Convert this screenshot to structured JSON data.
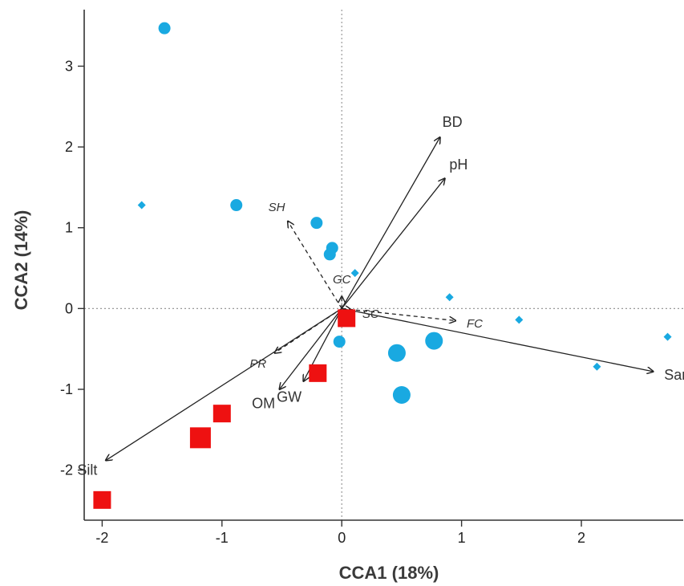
{
  "chart_data": {
    "type": "scatter",
    "title": "",
    "xlabel": "CCA1 (18%)",
    "ylabel": "CCA2 (14%)",
    "xlim": [
      -2.15,
      2.85
    ],
    "ylim": [
      -2.62,
      3.7
    ],
    "xticks": [
      -2,
      -1,
      0,
      1,
      2
    ],
    "yticks": [
      -2,
      -1,
      0,
      1,
      2,
      3
    ],
    "grid": false,
    "reference_lines": {
      "x": 0,
      "y": 0,
      "style": "dotted"
    },
    "colors": {
      "site": "#19a9e1",
      "species": "#ee1111",
      "axes": "#333333",
      "vector": "#222222"
    },
    "sites": [
      {
        "x": -1.48,
        "y": 3.47,
        "size": 2
      },
      {
        "x": -1.67,
        "y": 1.28,
        "size": 1
      },
      {
        "x": -0.88,
        "y": 1.28,
        "size": 2
      },
      {
        "x": -0.21,
        "y": 1.06,
        "size": 2
      },
      {
        "x": -0.08,
        "y": 0.75,
        "size": 2
      },
      {
        "x": -0.1,
        "y": 0.67,
        "size": 2
      },
      {
        "x": 0.11,
        "y": 0.44,
        "size": 1
      },
      {
        "x": 0.9,
        "y": 0.14,
        "size": 1
      },
      {
        "x": 1.48,
        "y": -0.14,
        "size": 1
      },
      {
        "x": 2.72,
        "y": -0.35,
        "size": 1
      },
      {
        "x": -0.02,
        "y": -0.41,
        "size": 2
      },
      {
        "x": 0.46,
        "y": -0.55,
        "size": 3
      },
      {
        "x": 0.77,
        "y": -0.4,
        "size": 3
      },
      {
        "x": 0.5,
        "y": -1.07,
        "size": 3
      },
      {
        "x": 2.13,
        "y": -0.72,
        "size": 1
      }
    ],
    "species": [
      {
        "x": 0.04,
        "y": -0.12,
        "size": 2
      },
      {
        "x": -0.2,
        "y": -0.8,
        "size": 2
      },
      {
        "x": -1.0,
        "y": -1.3,
        "size": 2
      },
      {
        "x": -1.18,
        "y": -1.6,
        "size": 3
      },
      {
        "x": -2.0,
        "y": -2.37,
        "size": 2
      }
    ],
    "vectors": [
      {
        "label": "BD",
        "x": 0.82,
        "y": 2.12,
        "dashed": false,
        "italic": false
      },
      {
        "label": "pH",
        "x": 0.86,
        "y": 1.61,
        "dashed": false,
        "italic": false
      },
      {
        "label": "Sand",
        "x": 2.6,
        "y": -0.78,
        "dashed": false,
        "italic": false
      },
      {
        "label": "Silt",
        "x": -1.97,
        "y": -1.88,
        "dashed": false,
        "italic": false
      },
      {
        "label": "OM",
        "x": -0.52,
        "y": -1.0,
        "dashed": false,
        "italic": false
      },
      {
        "label": "GW",
        "x": -0.32,
        "y": -0.9,
        "dashed": false,
        "italic": false
      },
      {
        "label": "SH",
        "x": -0.45,
        "y": 1.08,
        "dashed": true,
        "italic": true
      },
      {
        "label": "GC",
        "x": 0.0,
        "y": 0.15,
        "dashed": true,
        "italic": true
      },
      {
        "label": "SC",
        "x": 0.08,
        "y": -0.02,
        "dashed": true,
        "italic": true
      },
      {
        "label": "FC",
        "x": 0.95,
        "y": -0.15,
        "dashed": true,
        "italic": true
      },
      {
        "label": "PR",
        "x": -0.56,
        "y": -0.55,
        "dashed": true,
        "italic": true
      }
    ]
  }
}
